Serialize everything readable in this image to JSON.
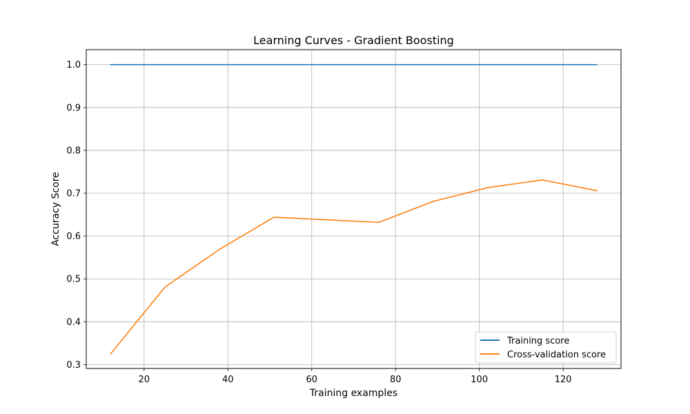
{
  "chart_data": {
    "type": "line",
    "title": "Learning Curves - Gradient Boosting",
    "xlabel": "Training examples",
    "ylabel": "Accuracy Score",
    "x": [
      12,
      25,
      38,
      51,
      76,
      89,
      102,
      115,
      128
    ],
    "xlim": [
      6.2,
      133.8
    ],
    "ylim": [
      0.291,
      1.035
    ],
    "xticks": [
      20,
      40,
      60,
      80,
      100,
      120
    ],
    "yticks": [
      0.3,
      0.4,
      0.5,
      0.6,
      0.7,
      0.8,
      0.9,
      1.0
    ],
    "xtick_labels": [
      "20",
      "40",
      "60",
      "80",
      "100",
      "120"
    ],
    "ytick_labels": [
      "0.3",
      "0.4",
      "0.5",
      "0.6",
      "0.7",
      "0.8",
      "0.9",
      "1.0"
    ],
    "grid": true,
    "legend_position": "lower-right",
    "series": [
      {
        "name": "Training score",
        "color": "#1f77b4",
        "values": [
          1.0,
          1.0,
          1.0,
          1.0,
          1.0,
          1.0,
          1.0,
          1.0,
          1.0
        ]
      },
      {
        "name": "Cross-validation score",
        "color": "#ff7f0e",
        "values": [
          0.325,
          0.481,
          0.569,
          0.644,
          0.632,
          0.681,
          0.713,
          0.731,
          0.706
        ]
      }
    ]
  }
}
